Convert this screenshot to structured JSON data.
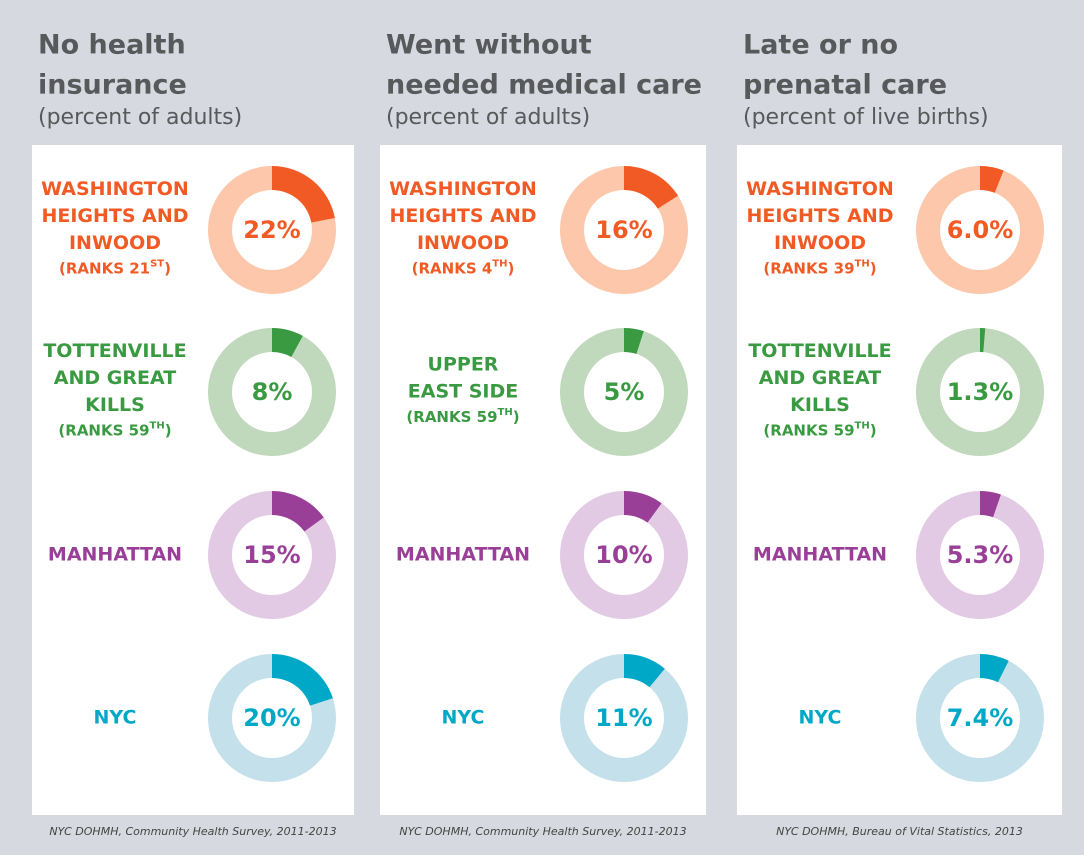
{
  "chart_data": [
    {
      "type": "donut",
      "title": [
        "No health",
        "insurance"
      ],
      "subtitle": "(percent of adults)",
      "categories": [
        [
          "WASHINGTON",
          "HEIGHTS AND",
          "INWOOD"
        ],
        [
          "TOTTENVILLE",
          "AND GREAT",
          "KILLS"
        ],
        [
          "MANHATTAN"
        ],
        [
          "NYC"
        ]
      ],
      "ranks": [
        [
          "(RANKS 21",
          "ST",
          ")"
        ],
        [
          "(RANKS 59",
          "TH",
          ")"
        ],
        null,
        null
      ],
      "values": [
        22,
        8,
        15,
        20
      ],
      "value_labels": [
        "22%",
        "8%",
        "15%",
        "20%"
      ],
      "colors": [
        "#f15a24",
        "#399a41",
        "#9a3f97",
        "#00a8c8"
      ],
      "track_colors": [
        "#fcc7aa",
        "#c0d8bb",
        "#e2cae4",
        "#c4e1eb"
      ],
      "source": "NYC DOHMH, Community Health Survey, 2011-2013"
    },
    {
      "type": "donut",
      "title": [
        "Went without",
        "needed medical care"
      ],
      "subtitle": "(percent of adults)",
      "categories": [
        [
          "WASHINGTON",
          "HEIGHTS AND",
          "INWOOD"
        ],
        [
          "UPPER",
          "EAST SIDE"
        ],
        [
          "MANHATTAN"
        ],
        [
          "NYC"
        ]
      ],
      "ranks": [
        [
          "(RANKS 4",
          "TH",
          ")"
        ],
        [
          "(RANKS 59",
          "TH",
          ")"
        ],
        null,
        null
      ],
      "values": [
        16,
        5,
        10,
        11
      ],
      "value_labels": [
        "16%",
        "5%",
        "10%",
        "11%"
      ],
      "colors": [
        "#f15a24",
        "#399a41",
        "#9a3f97",
        "#00a8c8"
      ],
      "track_colors": [
        "#fcc7aa",
        "#c0d8bb",
        "#e2cae4",
        "#c4e1eb"
      ],
      "source": "NYC DOHMH, Community Health Survey, 2011-2013"
    },
    {
      "type": "donut",
      "title": [
        "Late or no",
        "prenatal care"
      ],
      "subtitle": "(percent of live births)",
      "categories": [
        [
          "WASHINGTON",
          "HEIGHTS AND",
          "INWOOD"
        ],
        [
          "TOTTENVILLE",
          "AND GREAT",
          "KILLS"
        ],
        [
          "MANHATTAN"
        ],
        [
          "NYC"
        ]
      ],
      "ranks": [
        [
          "(RANKS 39",
          "TH",
          ")"
        ],
        [
          "(RANKS 59",
          "TH",
          ")"
        ],
        null,
        null
      ],
      "values": [
        6.0,
        1.3,
        5.3,
        7.4
      ],
      "value_labels": [
        "6.0%",
        "1.3%",
        "5.3%",
        "7.4%"
      ],
      "colors": [
        "#f15a24",
        "#399a41",
        "#9a3f97",
        "#00a8c8"
      ],
      "track_colors": [
        "#fcc7aa",
        "#c0d8bb",
        "#e2cae4",
        "#c4e1eb"
      ],
      "source": "NYC DOHMH, Bureau of Vital Statistics, 2013"
    }
  ]
}
